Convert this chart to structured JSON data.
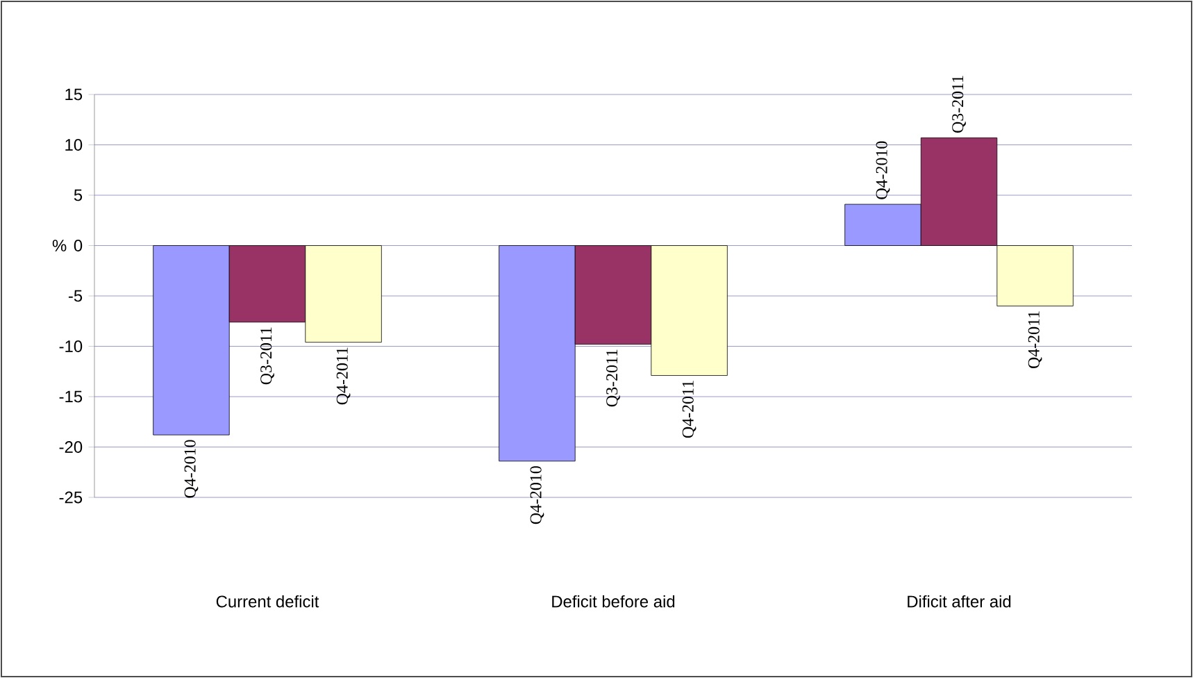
{
  "chart_data": {
    "type": "bar",
    "ylabel": "%",
    "categories": [
      "Current deficit",
      "Deficit before aid",
      "Dificit after aid"
    ],
    "series": [
      {
        "name": "Q4-2010",
        "color": "#9999ff",
        "values": [
          -18.8,
          -21.4,
          4.1
        ]
      },
      {
        "name": "Q3-2011",
        "color": "#993366",
        "values": [
          -7.6,
          -9.8,
          10.7
        ]
      },
      {
        "name": "Q4-2011",
        "color": "#ffffcc",
        "values": [
          -9.6,
          -12.9,
          -6.0
        ]
      }
    ],
    "ylim": [
      -25,
      15
    ],
    "yticks": [
      -25,
      -20,
      -15,
      -10,
      -5,
      0,
      5,
      10,
      15
    ],
    "grid": "y",
    "legend": false
  }
}
